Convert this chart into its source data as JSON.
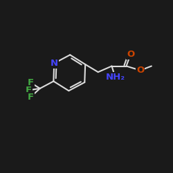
{
  "background_color": "#1a1a1a",
  "bond_color": "#dcdcdc",
  "bond_width": 1.5,
  "atoms": {
    "N": {
      "color": "#4444ff",
      "fontsize": 9.5
    },
    "O": {
      "color": "#cc4400",
      "fontsize": 9.5
    },
    "F": {
      "color": "#44aa44",
      "fontsize": 9.5
    },
    "NH2": {
      "color": "#4444ff",
      "fontsize": 9.5
    }
  },
  "figsize": [
    2.5,
    2.5
  ],
  "dpi": 100
}
